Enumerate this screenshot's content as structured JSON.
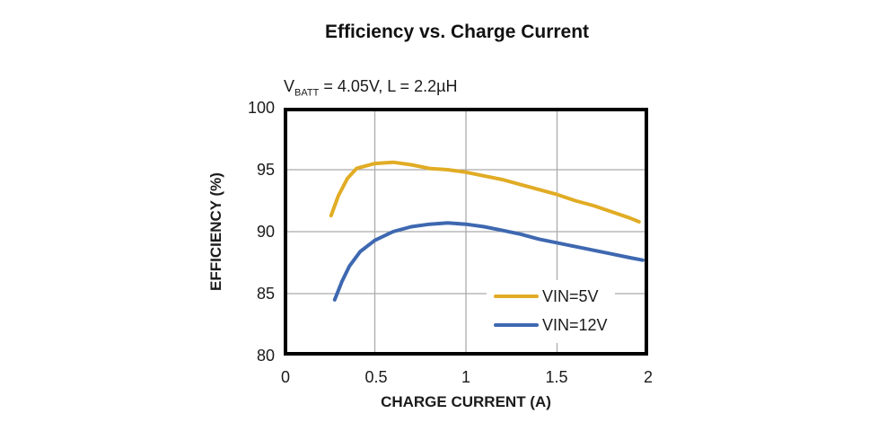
{
  "title": "Efficiency vs. Charge Current",
  "subtitle": {
    "prefix": "V",
    "sub": "BATT",
    "rest": " = 4.05V, L = 2.2µH"
  },
  "colors": {
    "frame": "#000000",
    "grid": "#ababab",
    "text": "#1b1b1b",
    "series_vin5v": "#e1ac24",
    "series_vin12v": "#3e68b0"
  },
  "chart_data": {
    "type": "line",
    "title": "Efficiency vs. Charge Current",
    "condition": "VBATT = 4.05V, L = 2.2µH",
    "xlabel": "CHARGE CURRENT (A)",
    "ylabel": "EFFICIENCY (%)",
    "xlim": [
      0,
      2
    ],
    "ylim": [
      80,
      100
    ],
    "x_ticks": [
      0,
      0.5,
      1,
      1.5,
      2
    ],
    "x_tick_labels": [
      "0",
      "0.5",
      "1",
      "1.5",
      "2"
    ],
    "y_ticks": [
      80,
      85,
      90,
      95,
      100
    ],
    "y_tick_labels": [
      "80",
      "85",
      "90",
      "95",
      "100"
    ],
    "x_gridlines": [
      0.5,
      1,
      1.5
    ],
    "y_gridlines": [
      85,
      90,
      95
    ],
    "grid": true,
    "legend_position": "inside lower right",
    "series": [
      {
        "name": "VIN=5V",
        "color": "#e1ac24",
        "points": [
          [
            0.26,
            91.3
          ],
          [
            0.3,
            92.9
          ],
          [
            0.35,
            94.3
          ],
          [
            0.4,
            95.1
          ],
          [
            0.5,
            95.5
          ],
          [
            0.6,
            95.6
          ],
          [
            0.7,
            95.4
          ],
          [
            0.8,
            95.1
          ],
          [
            0.9,
            95.0
          ],
          [
            1.0,
            94.8
          ],
          [
            1.1,
            94.5
          ],
          [
            1.2,
            94.2
          ],
          [
            1.3,
            93.8
          ],
          [
            1.4,
            93.4
          ],
          [
            1.5,
            93.0
          ],
          [
            1.6,
            92.5
          ],
          [
            1.7,
            92.1
          ],
          [
            1.8,
            91.6
          ],
          [
            1.9,
            91.1
          ],
          [
            1.95,
            90.8
          ]
        ]
      },
      {
        "name": "VIN=12V",
        "color": "#3e68b0",
        "points": [
          [
            0.28,
            84.5
          ],
          [
            0.32,
            86.0
          ],
          [
            0.36,
            87.2
          ],
          [
            0.42,
            88.4
          ],
          [
            0.5,
            89.3
          ],
          [
            0.6,
            90.0
          ],
          [
            0.7,
            90.4
          ],
          [
            0.8,
            90.6
          ],
          [
            0.9,
            90.7
          ],
          [
            1.0,
            90.6
          ],
          [
            1.1,
            90.4
          ],
          [
            1.2,
            90.1
          ],
          [
            1.3,
            89.8
          ],
          [
            1.4,
            89.4
          ],
          [
            1.5,
            89.1
          ],
          [
            1.6,
            88.8
          ],
          [
            1.7,
            88.5
          ],
          [
            1.8,
            88.2
          ],
          [
            1.9,
            87.9
          ],
          [
            1.97,
            87.7
          ]
        ]
      }
    ]
  }
}
